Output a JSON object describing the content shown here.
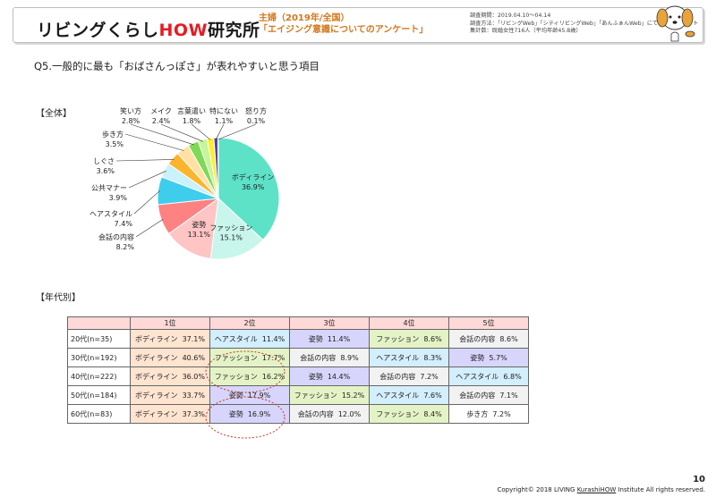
{
  "header": {
    "logo_pre": "リビングくらし",
    "logo_x": "HOW",
    "logo_post": "研究所",
    "sponsor_line1": "主婦（2019年/全国）",
    "sponsor_line2": "「エイジング意識についてのアンケート」",
    "survey_line1": "調査期間：2019.04.10～04.14",
    "survey_line2": "調査方法：「リビングWeb」「シティリビングWeb」「あんふぁんWeb」にてWEBアンケート",
    "survey_line3": "集計数：既婚女性716人（平均年齢45.8歳）"
  },
  "question": "Q5.一般的に最も「おばさんっぽさ」が表れやすいと思う項目",
  "section_all": "【全体】",
  "section_age": "【年代別】",
  "chart_data": {
    "type": "pie",
    "categories": [
      "ボディライン",
      "ファッション",
      "姿勢",
      "会話の内容",
      "ヘアスタイル",
      "公共マナー",
      "しぐさ",
      "歩き方",
      "笑い方",
      "メイク",
      "言葉遣い",
      "特にない",
      "怒り方"
    ],
    "values": [
      36.9,
      15.1,
      13.1,
      8.2,
      7.4,
      3.9,
      3.6,
      3.5,
      2.8,
      2.4,
      1.8,
      1.1,
      0.1
    ],
    "value_labels": [
      "36.9%",
      "15.1%",
      "13.1%",
      "8.2%",
      "7.4%",
      "3.9%",
      "3.6%",
      "3.5%",
      "2.8%",
      "2.4%",
      "1.8%",
      "1.1%",
      "0.1%"
    ],
    "colors": [
      "#5de2c8",
      "#c8f5ec",
      "#ffc4c4",
      "#ff8282",
      "#3fcdee",
      "#c9f2fb",
      "#fdb42d",
      "#ffe1a3",
      "#7ed957",
      "#c6f59a",
      "#ffef2b",
      "#5b3fa0",
      "#a8a8d8"
    ]
  },
  "table": {
    "headers": [
      "",
      "1位",
      "2位",
      "3位",
      "4位",
      "5位"
    ],
    "rows": [
      {
        "label": "20代(n=35)",
        "cells": [
          {
            "t": "ボディライン",
            "v": "37.1%",
            "c": "#ffe4d0"
          },
          {
            "t": "ヘアスタイル",
            "v": "11.4%",
            "c": "#d3eefc"
          },
          {
            "t": "姿勢",
            "v": "11.4%",
            "c": "#d7d5fb"
          },
          {
            "t": "ファッション",
            "v": "8.6%",
            "c": "#e4f3c6"
          },
          {
            "t": "会話の内容",
            "v": "8.6%",
            "c": "#f2f2f2"
          }
        ]
      },
      {
        "label": "30代(n=192)",
        "cells": [
          {
            "t": "ボディライン",
            "v": "40.6%",
            "c": "#ffe4d0"
          },
          {
            "t": "ファッション",
            "v": "17.7%",
            "c": "#e4f3c6"
          },
          {
            "t": "会話の内容",
            "v": "8.9%",
            "c": "#f2f2f2"
          },
          {
            "t": "ヘアスタイル",
            "v": "8.3%",
            "c": "#d3eefc"
          },
          {
            "t": "姿勢",
            "v": "5.7%",
            "c": "#d7d5fb"
          }
        ]
      },
      {
        "label": "40代(n=222)",
        "cells": [
          {
            "t": "ボディライン",
            "v": "36.0%",
            "c": "#ffe4d0"
          },
          {
            "t": "ファッション",
            "v": "16.2%",
            "c": "#e4f3c6"
          },
          {
            "t": "姿勢",
            "v": "14.4%",
            "c": "#d7d5fb"
          },
          {
            "t": "会話の内容",
            "v": "7.2%",
            "c": "#f2f2f2"
          },
          {
            "t": "ヘアスタイル",
            "v": "6.8%",
            "c": "#d3eefc"
          }
        ]
      },
      {
        "label": "50代(n=184)",
        "cells": [
          {
            "t": "ボディライン",
            "v": "33.7%",
            "c": "#ffe4d0"
          },
          {
            "t": "姿勢",
            "v": "17.9%",
            "c": "#d7d5fb"
          },
          {
            "t": "ファッション",
            "v": "15.2%",
            "c": "#e4f3c6"
          },
          {
            "t": "ヘアスタイル",
            "v": "7.6%",
            "c": "#d3eefc"
          },
          {
            "t": "会話の内容",
            "v": "7.1%",
            "c": "#f2f2f2"
          }
        ]
      },
      {
        "label": "60代(n=83)",
        "cells": [
          {
            "t": "ボディライン",
            "v": "37.3%",
            "c": "#ffe4d0"
          },
          {
            "t": "姿勢",
            "v": "16.9%",
            "c": "#d7d5fb"
          },
          {
            "t": "会話の内容",
            "v": "12.0%",
            "c": "#f2f2f2"
          },
          {
            "t": "ファッション",
            "v": "8.4%",
            "c": "#e4f3c6"
          },
          {
            "t": "歩き方",
            "v": "7.2%",
            "c": "#ffffff"
          }
        ]
      }
    ]
  },
  "page_number": "10",
  "footer_pre": "Copyright© 2018 LIVING ",
  "footer_link": "KurashiHOW",
  "footer_post": " Institute All rights reserved."
}
